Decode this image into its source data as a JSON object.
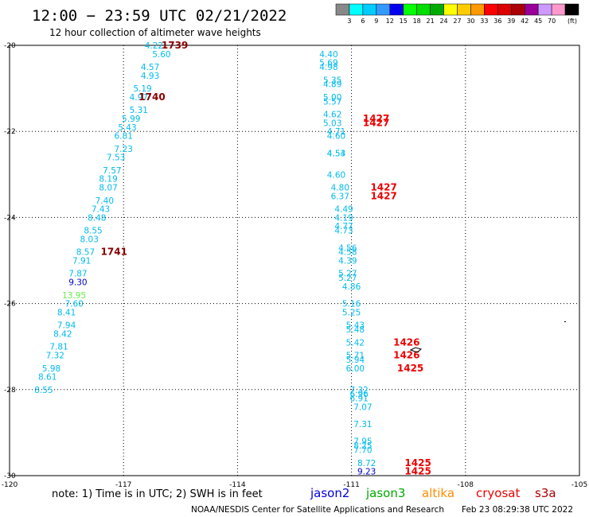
{
  "title": "12:00 − 23:59 UTC 02/21/2022",
  "subtitle": "12 hour collection of altimeter wave heights",
  "note": "note: 1) Time is in UTC; 2) SWH is in feet",
  "credit": "NOAA/NESDIS Center for Satellite Applications and Research",
  "timestamp": "Feb 23 08:29:38 UTC 2022",
  "satellites": [
    {
      "name": "jason2",
      "color": "#0000dd"
    },
    {
      "name": "jason3",
      "color": "#00aa00"
    },
    {
      "name": "altika",
      "color": "#ff8c00"
    },
    {
      "name": "cryosat",
      "color": "#ee0000"
    },
    {
      "name": "s3a",
      "color": "#aa0000"
    }
  ],
  "colorbar": {
    "labels": [
      "3",
      "6",
      "9",
      "12",
      "15",
      "18",
      "21",
      "24",
      "27",
      "30",
      "33",
      "36",
      "39",
      "42",
      "45",
      "70"
    ],
    "unit": "(ft)",
    "colors": [
      "#888888",
      "#00ffff",
      "#00ccff",
      "#3399ff",
      "#0000ee",
      "#00ff00",
      "#00dd00",
      "#00aa00",
      "#ffff00",
      "#ffcc00",
      "#ff9900",
      "#ff0000",
      "#dd0000",
      "#aa0000",
      "#990099",
      "#cc99ff",
      "#ff99cc",
      "#000000"
    ]
  },
  "chart_data": {
    "type": "scatter",
    "title": "12:00 − 23:59 UTC 02/21/2022",
    "subtitle": "12 hour collection of altimeter wave heights",
    "xlim": [
      -120,
      -105
    ],
    "ylim": [
      -30,
      -20
    ],
    "x_ticks": [
      "-120",
      "-117",
      "-114",
      "-111",
      "-108",
      "-105"
    ],
    "y_ticks": [
      "-20",
      "-22",
      "-24",
      "-26",
      "-28",
      "-30"
    ],
    "grid": true,
    "series": [
      {
        "track": "west",
        "points": [
          {
            "x": -116.2,
            "y": -20.0,
            "swh": "4.22",
            "color": "#00bbee"
          },
          {
            "x": -116.0,
            "y": -20.2,
            "swh": "5.60",
            "color": "#00bbee"
          },
          {
            "x": -116.3,
            "y": -20.5,
            "swh": "4.57",
            "color": "#00bbee"
          },
          {
            "x": -116.3,
            "y": -20.7,
            "swh": "4.93",
            "color": "#00bbee"
          },
          {
            "x": -116.5,
            "y": -21.0,
            "swh": "5.19",
            "color": "#00bbee"
          },
          {
            "x": -116.6,
            "y": -21.2,
            "swh": "4.97",
            "color": "#00bbee"
          },
          {
            "x": -116.6,
            "y": -21.5,
            "swh": "5.31",
            "color": "#00bbee"
          },
          {
            "x": -116.8,
            "y": -21.7,
            "swh": "5.99",
            "color": "#00bbee"
          },
          {
            "x": -116.9,
            "y": -21.9,
            "swh": "5.43",
            "color": "#00bbee"
          },
          {
            "x": -117.0,
            "y": -22.1,
            "swh": "6.81",
            "color": "#00bbee"
          },
          {
            "x": -117.0,
            "y": -22.4,
            "swh": "7.23",
            "color": "#00bbee"
          },
          {
            "x": -117.2,
            "y": -22.6,
            "swh": "7.53",
            "color": "#00bbee"
          },
          {
            "x": -117.3,
            "y": -22.9,
            "swh": "7.57",
            "color": "#00bbee"
          },
          {
            "x": -117.4,
            "y": -23.1,
            "swh": "8.19",
            "color": "#00bbee"
          },
          {
            "x": -117.4,
            "y": -23.3,
            "swh": "8.07",
            "color": "#00bbee"
          },
          {
            "x": -117.5,
            "y": -23.6,
            "swh": "7.40",
            "color": "#00bbee"
          },
          {
            "x": -117.6,
            "y": -23.8,
            "swh": "7.43",
            "color": "#00bbee"
          },
          {
            "x": -117.7,
            "y": -24.0,
            "swh": "8.48",
            "color": "#00bbee"
          },
          {
            "x": -117.8,
            "y": -24.3,
            "swh": "8.55",
            "color": "#00bbee"
          },
          {
            "x": -117.9,
            "y": -24.5,
            "swh": "8.03",
            "color": "#00bbee"
          },
          {
            "x": -118.0,
            "y": -24.8,
            "swh": "8.57",
            "color": "#00bbee"
          },
          {
            "x": -118.1,
            "y": -25.0,
            "swh": "7.91",
            "color": "#00bbee"
          },
          {
            "x": -118.2,
            "y": -25.3,
            "swh": "7.87",
            "color": "#00bbee"
          },
          {
            "x": -118.2,
            "y": -25.5,
            "swh": "9.30",
            "color": "#0000cc"
          },
          {
            "x": -118.3,
            "y": -25.8,
            "swh": "13.95",
            "color": "#66ee44"
          },
          {
            "x": -118.3,
            "y": -26.0,
            "swh": "7.60",
            "color": "#00bbee"
          },
          {
            "x": -118.5,
            "y": -26.2,
            "swh": "8.41",
            "color": "#00bbee"
          },
          {
            "x": -118.5,
            "y": -26.5,
            "swh": "7.94",
            "color": "#00bbee"
          },
          {
            "x": -118.6,
            "y": -26.7,
            "swh": "8.42",
            "color": "#00bbee"
          },
          {
            "x": -118.7,
            "y": -27.0,
            "swh": "7.81",
            "color": "#00bbee"
          },
          {
            "x": -118.8,
            "y": -27.2,
            "swh": "7.32",
            "color": "#00bbee"
          },
          {
            "x": -118.9,
            "y": -27.5,
            "swh": "5.98",
            "color": "#00bbee"
          },
          {
            "x": -119.0,
            "y": -27.7,
            "swh": "8.61",
            "color": "#00bbee"
          },
          {
            "x": -119.1,
            "y": -28.0,
            "swh": "8.55",
            "color": "#00bbee"
          }
        ]
      },
      {
        "track": "east",
        "points": [
          {
            "x": -111.6,
            "y": -20.2,
            "swh": "4.40",
            "color": "#00bbee"
          },
          {
            "x": -111.6,
            "y": -20.4,
            "swh": "5.69",
            "color": "#00bbee"
          },
          {
            "x": -111.6,
            "y": -20.5,
            "swh": "4.98",
            "color": "#00bbee"
          },
          {
            "x": -111.5,
            "y": -20.8,
            "swh": "5.35",
            "color": "#00bbee"
          },
          {
            "x": -111.5,
            "y": -20.9,
            "swh": "4.89",
            "color": "#00bbee"
          },
          {
            "x": -111.5,
            "y": -21.2,
            "swh": "5.00",
            "color": "#00bbee"
          },
          {
            "x": -111.5,
            "y": -21.3,
            "swh": "5.57",
            "color": "#00bbee"
          },
          {
            "x": -111.5,
            "y": -21.6,
            "swh": "4.62",
            "color": "#00bbee"
          },
          {
            "x": -111.5,
            "y": -21.8,
            "swh": "5.03",
            "color": "#00bbee"
          },
          {
            "x": -111.4,
            "y": -22.0,
            "swh": "4.71",
            "color": "#00bbee"
          },
          {
            "x": -111.4,
            "y": -22.1,
            "swh": "4.60",
            "color": "#00bbee"
          },
          {
            "x": -111.4,
            "y": -22.5,
            "swh": "4.54",
            "color": "#00bbee"
          },
          {
            "x": -111.4,
            "y": -22.5,
            "swh": "4.53",
            "color": "#00bbee"
          },
          {
            "x": -111.4,
            "y": -23.0,
            "swh": "4.60",
            "color": "#00bbee"
          },
          {
            "x": -111.3,
            "y": -23.3,
            "swh": "4.80",
            "color": "#00bbee"
          },
          {
            "x": -111.3,
            "y": -23.5,
            "swh": "6.37",
            "color": "#00bbee"
          },
          {
            "x": -111.2,
            "y": -23.8,
            "swh": "4.49",
            "color": "#00bbee"
          },
          {
            "x": -111.2,
            "y": -24.0,
            "swh": "4.19",
            "color": "#00bbee"
          },
          {
            "x": -111.2,
            "y": -24.2,
            "swh": "4.77",
            "color": "#00bbee"
          },
          {
            "x": -111.2,
            "y": -24.3,
            "swh": "4.73",
            "color": "#00bbee"
          },
          {
            "x": -111.1,
            "y": -24.7,
            "swh": "4.56",
            "color": "#00bbee"
          },
          {
            "x": -111.1,
            "y": -24.8,
            "swh": "4.58",
            "color": "#00bbee"
          },
          {
            "x": -111.1,
            "y": -25.0,
            "swh": "4.39",
            "color": "#00bbee"
          },
          {
            "x": -111.1,
            "y": -25.3,
            "swh": "5.27",
            "color": "#00bbee"
          },
          {
            "x": -111.1,
            "y": -25.4,
            "swh": "5.27",
            "color": "#00bbee"
          },
          {
            "x": -111.0,
            "y": -25.6,
            "swh": "4.86",
            "color": "#00bbee"
          },
          {
            "x": -111.0,
            "y": -26.0,
            "swh": "5.16",
            "color": "#00bbee"
          },
          {
            "x": -111.0,
            "y": -26.2,
            "swh": "5.25",
            "color": "#00bbee"
          },
          {
            "x": -110.9,
            "y": -26.5,
            "swh": "5.43",
            "color": "#00bbee"
          },
          {
            "x": -110.9,
            "y": -26.6,
            "swh": "5.48",
            "color": "#00bbee"
          },
          {
            "x": -110.9,
            "y": -26.9,
            "swh": "5.42",
            "color": "#00bbee"
          },
          {
            "x": -110.9,
            "y": -27.2,
            "swh": "5.71",
            "color": "#00bbee"
          },
          {
            "x": -110.9,
            "y": -27.3,
            "swh": "5.94",
            "color": "#00bbee"
          },
          {
            "x": -110.9,
            "y": -27.5,
            "swh": "6.00",
            "color": "#00bbee"
          },
          {
            "x": -110.8,
            "y": -28.0,
            "swh": "7.32",
            "color": "#00bbee"
          },
          {
            "x": -110.8,
            "y": -28.1,
            "swh": "6.96",
            "color": "#00bbee"
          },
          {
            "x": -110.8,
            "y": -28.2,
            "swh": "6.91",
            "color": "#00bbee"
          },
          {
            "x": -110.7,
            "y": -28.4,
            "swh": "7.07",
            "color": "#00bbee"
          },
          {
            "x": -110.7,
            "y": -28.8,
            "swh": "7.31",
            "color": "#00bbee"
          },
          {
            "x": -110.7,
            "y": -29.2,
            "swh": "7.95",
            "color": "#00bbee"
          },
          {
            "x": -110.7,
            "y": -29.3,
            "swh": "8.25",
            "color": "#00bbee"
          },
          {
            "x": -110.7,
            "y": -29.4,
            "swh": "7.70",
            "color": "#00bbee"
          },
          {
            "x": -110.6,
            "y": -29.7,
            "swh": "8.72",
            "color": "#00bbee"
          },
          {
            "x": -110.6,
            "y": -29.9,
            "swh": "9.23",
            "color": "#0000cc"
          }
        ]
      }
    ],
    "time_labels": [
      {
        "x": -116.0,
        "y": -20.0,
        "text": "1739",
        "color": "#880000"
      },
      {
        "x": -116.6,
        "y": -21.2,
        "text": "1740",
        "color": "#880000"
      },
      {
        "x": -117.6,
        "y": -24.8,
        "text": "1741",
        "color": "#880000"
      },
      {
        "x": -110.7,
        "y": -21.7,
        "text": "1427",
        "color": "#ee0000"
      },
      {
        "x": -110.7,
        "y": -21.8,
        "text": "1427",
        "color": "#ee0000"
      },
      {
        "x": -110.5,
        "y": -23.3,
        "text": "1427",
        "color": "#ee0000"
      },
      {
        "x": -110.5,
        "y": -23.5,
        "text": "1427",
        "color": "#ee0000"
      },
      {
        "x": -109.9,
        "y": -26.9,
        "text": "1426",
        "color": "#ee0000"
      },
      {
        "x": -109.9,
        "y": -27.2,
        "text": "1426",
        "color": "#ee0000"
      },
      {
        "x": -109.8,
        "y": -27.5,
        "text": "1425",
        "color": "#ee0000"
      },
      {
        "x": -109.6,
        "y": -29.7,
        "text": "1425",
        "color": "#ee0000"
      },
      {
        "x": -109.6,
        "y": -29.9,
        "text": "1425",
        "color": "#ee0000"
      }
    ]
  }
}
